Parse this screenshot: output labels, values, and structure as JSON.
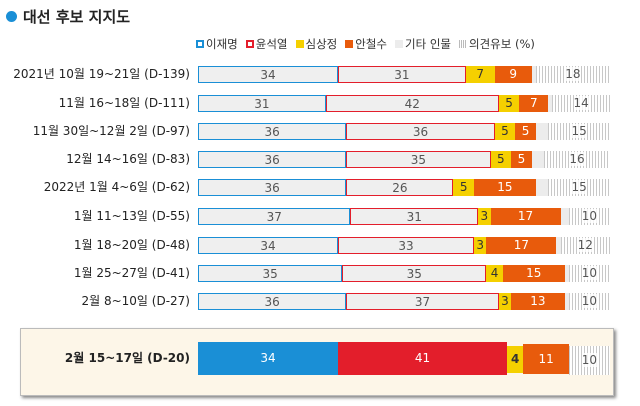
{
  "chart_data": {
    "type": "bar",
    "orientation": "horizontal-stacked",
    "title": "대선 후보 지지도",
    "legend": [
      "이재명",
      "윤석열",
      "심상정",
      "안철수",
      "기타 인물",
      "의견유보 (%)"
    ],
    "colors": {
      "이재명": "#1a8fd6",
      "윤석열": "#e31e2b",
      "심상정": "#f5d000",
      "안철수": "#e85b0c",
      "기타 인물": "#ececec",
      "의견유보": "#c8c8c8"
    },
    "categories": [
      "2021년 10월 19~21일 (D-139)",
      "11월 16~18일 (D-111)",
      "11월 30일~12월 2일 (D-97)",
      "12월 14~16일 (D-83)",
      "2022년 1월 4~6일 (D-62)",
      "1월 11~13일 (D-55)",
      "1월 18~20일 (D-48)",
      "1월 25~27일 (D-41)",
      "2월 8~10일 (D-27)",
      "2월 15~17일 (D-20)"
    ],
    "series": [
      {
        "name": "이재명",
        "values": [
          34,
          31,
          36,
          36,
          36,
          37,
          34,
          35,
          36,
          34
        ]
      },
      {
        "name": "윤석열",
        "values": [
          31,
          42,
          36,
          35,
          26,
          31,
          33,
          35,
          37,
          41
        ]
      },
      {
        "name": "심상정",
        "values": [
          7,
          5,
          5,
          5,
          5,
          3,
          3,
          4,
          3,
          4
        ]
      },
      {
        "name": "안철수",
        "values": [
          9,
          7,
          5,
          5,
          15,
          17,
          17,
          15,
          13,
          11
        ]
      },
      {
        "name": "기타 인물",
        "values": [
          1,
          1,
          3,
          3,
          3,
          2,
          1,
          1,
          1,
          0
        ]
      },
      {
        "name": "의견유보",
        "values": [
          18,
          14,
          15,
          16,
          15,
          10,
          12,
          10,
          10,
          10
        ]
      }
    ],
    "xlim": [
      0,
      100
    ]
  }
}
